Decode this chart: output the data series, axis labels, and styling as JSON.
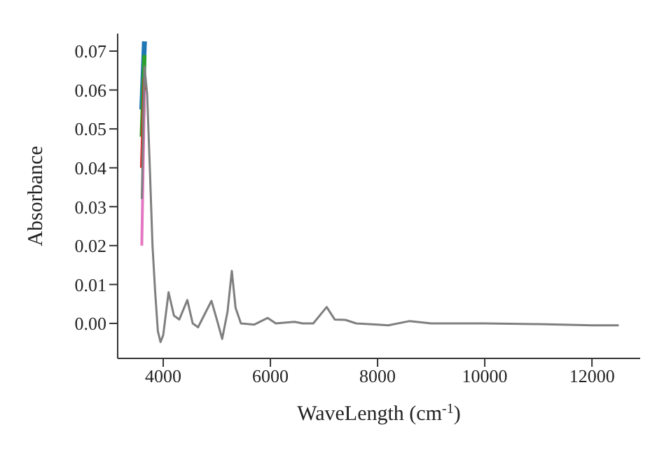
{
  "chart_data": {
    "type": "line",
    "xlabel": "WaveLength (cm$^{-1}$)",
    "ylabel": "Absorbance",
    "x": [
      3600,
      3650,
      3700,
      3750,
      3800,
      3850,
      3900,
      3950,
      4000,
      4100,
      4200,
      4300,
      4450,
      4550,
      4650,
      4900,
      5000,
      5100,
      5200,
      5280,
      5350,
      5450,
      5700,
      5950,
      6100,
      6450,
      6600,
      6800,
      7050,
      7200,
      7400,
      7600,
      8000,
      8200,
      8600,
      9000,
      10000,
      11000,
      12000,
      12500
    ],
    "series": [
      {
        "color": "#1f77b4",
        "values": [
          0.055,
          0.0725,
          null,
          null,
          null,
          null,
          null,
          null,
          null,
          null,
          null,
          null,
          null,
          null,
          null,
          null,
          null,
          null,
          null,
          null,
          null,
          null,
          null,
          null,
          null,
          null,
          null,
          null,
          null,
          null,
          null,
          null,
          null,
          null,
          null,
          null,
          null,
          null,
          null,
          null
        ]
      },
      {
        "color": "#2ca02c",
        "values": [
          0.048,
          0.069,
          null,
          null,
          null,
          null,
          null,
          null,
          null,
          null,
          null,
          null,
          null,
          null,
          null,
          null,
          null,
          null,
          null,
          null,
          null,
          null,
          null,
          null,
          null,
          null,
          null,
          null,
          null,
          null,
          null,
          null,
          null,
          null,
          null,
          null,
          null,
          null,
          null,
          null
        ]
      },
      {
        "color": "#d62728",
        "values": [
          0.04,
          0.063,
          null,
          null,
          null,
          null,
          null,
          null,
          null,
          null,
          null,
          null,
          null,
          null,
          null,
          null,
          null,
          null,
          null,
          null,
          null,
          null,
          null,
          null,
          null,
          null,
          null,
          null,
          null,
          null,
          null,
          null,
          null,
          null,
          null,
          null,
          null,
          null,
          null,
          null
        ]
      },
      {
        "color": "#e377c2",
        "values": [
          0.02,
          0.06,
          null,
          null,
          null,
          null,
          null,
          null,
          null,
          null,
          null,
          null,
          null,
          null,
          null,
          null,
          null,
          null,
          null,
          null,
          null,
          null,
          null,
          null,
          null,
          null,
          null,
          null,
          null,
          null,
          null,
          null,
          null,
          null,
          null,
          null,
          null,
          null,
          null,
          null
        ]
      },
      {
        "color": "#7f7f7f",
        "values": [
          0.032,
          0.066,
          0.059,
          0.04,
          0.02,
          0.008,
          -0.002,
          -0.0048,
          -0.003,
          0.008,
          0.002,
          0.001,
          0.006,
          0.0,
          -0.001,
          0.0058,
          0.001,
          -0.004,
          0.003,
          0.0135,
          0.004,
          0.0,
          -0.0003,
          0.0014,
          0.0,
          0.0004,
          0.0,
          0.0,
          0.0042,
          0.001,
          0.0009,
          0.0,
          -0.0003,
          -0.0005,
          0.0006,
          0.0,
          0.0,
          -0.0002,
          -0.0005,
          -0.0005
        ]
      }
    ],
    "xlim": [
      3150,
      12900
    ],
    "xticks": [
      4000,
      6000,
      8000,
      10000,
      12000
    ],
    "ylim": [
      -0.009,
      0.0745
    ],
    "yticks": [
      {
        "value": 0,
        "label": "0.00"
      },
      0.01,
      0.02,
      0.03,
      0.04,
      0.05,
      0.06,
      0.07
    ],
    "grid": false,
    "legend": false,
    "marker": "none",
    "line_style": "solid"
  }
}
